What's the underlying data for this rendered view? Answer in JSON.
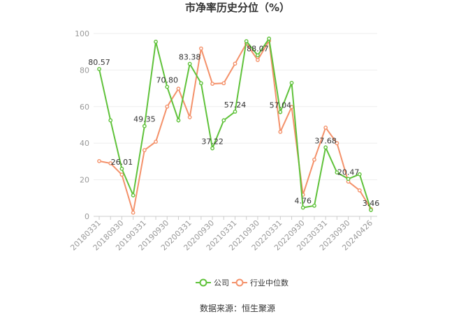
{
  "chart_data": {
    "type": "line",
    "title": "市净率历史分位（%）",
    "xlabel": "",
    "ylabel": "",
    "ylim": [
      0,
      100
    ],
    "yticks": [
      0,
      20,
      40,
      60,
      80,
      100
    ],
    "grid": true,
    "legend_placement": "bottom",
    "x": [
      "20180331",
      "20180630",
      "20180930",
      "20181231",
      "20190331",
      "20190630",
      "20190930",
      "20191231",
      "20200331",
      "20200630",
      "20200930",
      "20201231",
      "20210331",
      "20210630",
      "20210930",
      "20211231",
      "20220331",
      "20220630",
      "20220930",
      "20221231",
      "20230331",
      "20230630",
      "20230930",
      "20231231",
      "20240426"
    ],
    "x_tick_labels": [
      "20180331",
      "20180930",
      "20190331",
      "20190930",
      "20200331",
      "20200930",
      "20210331",
      "20210930",
      "20220331",
      "20220930",
      "20230331",
      "20230930",
      "20240426"
    ],
    "series": [
      {
        "name": "公司",
        "color": "#5fc23a",
        "values": [
          80.57,
          52.5,
          26.01,
          11.5,
          49.35,
          95.5,
          70.8,
          52.5,
          83.38,
          72.8,
          37.22,
          52.5,
          57.24,
          95.8,
          88.07,
          97.2,
          57.04,
          73.0,
          4.76,
          5.8,
          37.68,
          24.0,
          20.47,
          23.0,
          3.46
        ]
      },
      {
        "name": "行业中位数",
        "color": "#f4916a",
        "values": [
          30.2,
          29.0,
          22.8,
          2.0,
          36.2,
          40.8,
          60.0,
          69.8,
          54.2,
          91.8,
          72.5,
          72.8,
          83.5,
          94.5,
          85.5,
          96.0,
          46.2,
          59.8,
          11.8,
          31.0,
          48.5,
          40.0,
          19.0,
          14.2,
          4.0
        ]
      }
    ],
    "data_labels": [
      {
        "series": 0,
        "index": 0,
        "text": "80.57"
      },
      {
        "series": 0,
        "index": 2,
        "text": "26.01"
      },
      {
        "series": 0,
        "index": 4,
        "text": "49.35"
      },
      {
        "series": 0,
        "index": 6,
        "text": "70.80"
      },
      {
        "series": 0,
        "index": 8,
        "text": "83.38"
      },
      {
        "series": 0,
        "index": 10,
        "text": "37.22"
      },
      {
        "series": 0,
        "index": 12,
        "text": "57.24"
      },
      {
        "series": 0,
        "index": 14,
        "text": "88.07"
      },
      {
        "series": 0,
        "index": 16,
        "text": "57.04"
      },
      {
        "series": 0,
        "index": 18,
        "text": "4.76"
      },
      {
        "series": 0,
        "index": 20,
        "text": "37.68"
      },
      {
        "series": 0,
        "index": 22,
        "text": "20.47"
      },
      {
        "series": 0,
        "index": 24,
        "text": "3.46"
      }
    ],
    "source": "数据来源：恒生聚源"
  }
}
